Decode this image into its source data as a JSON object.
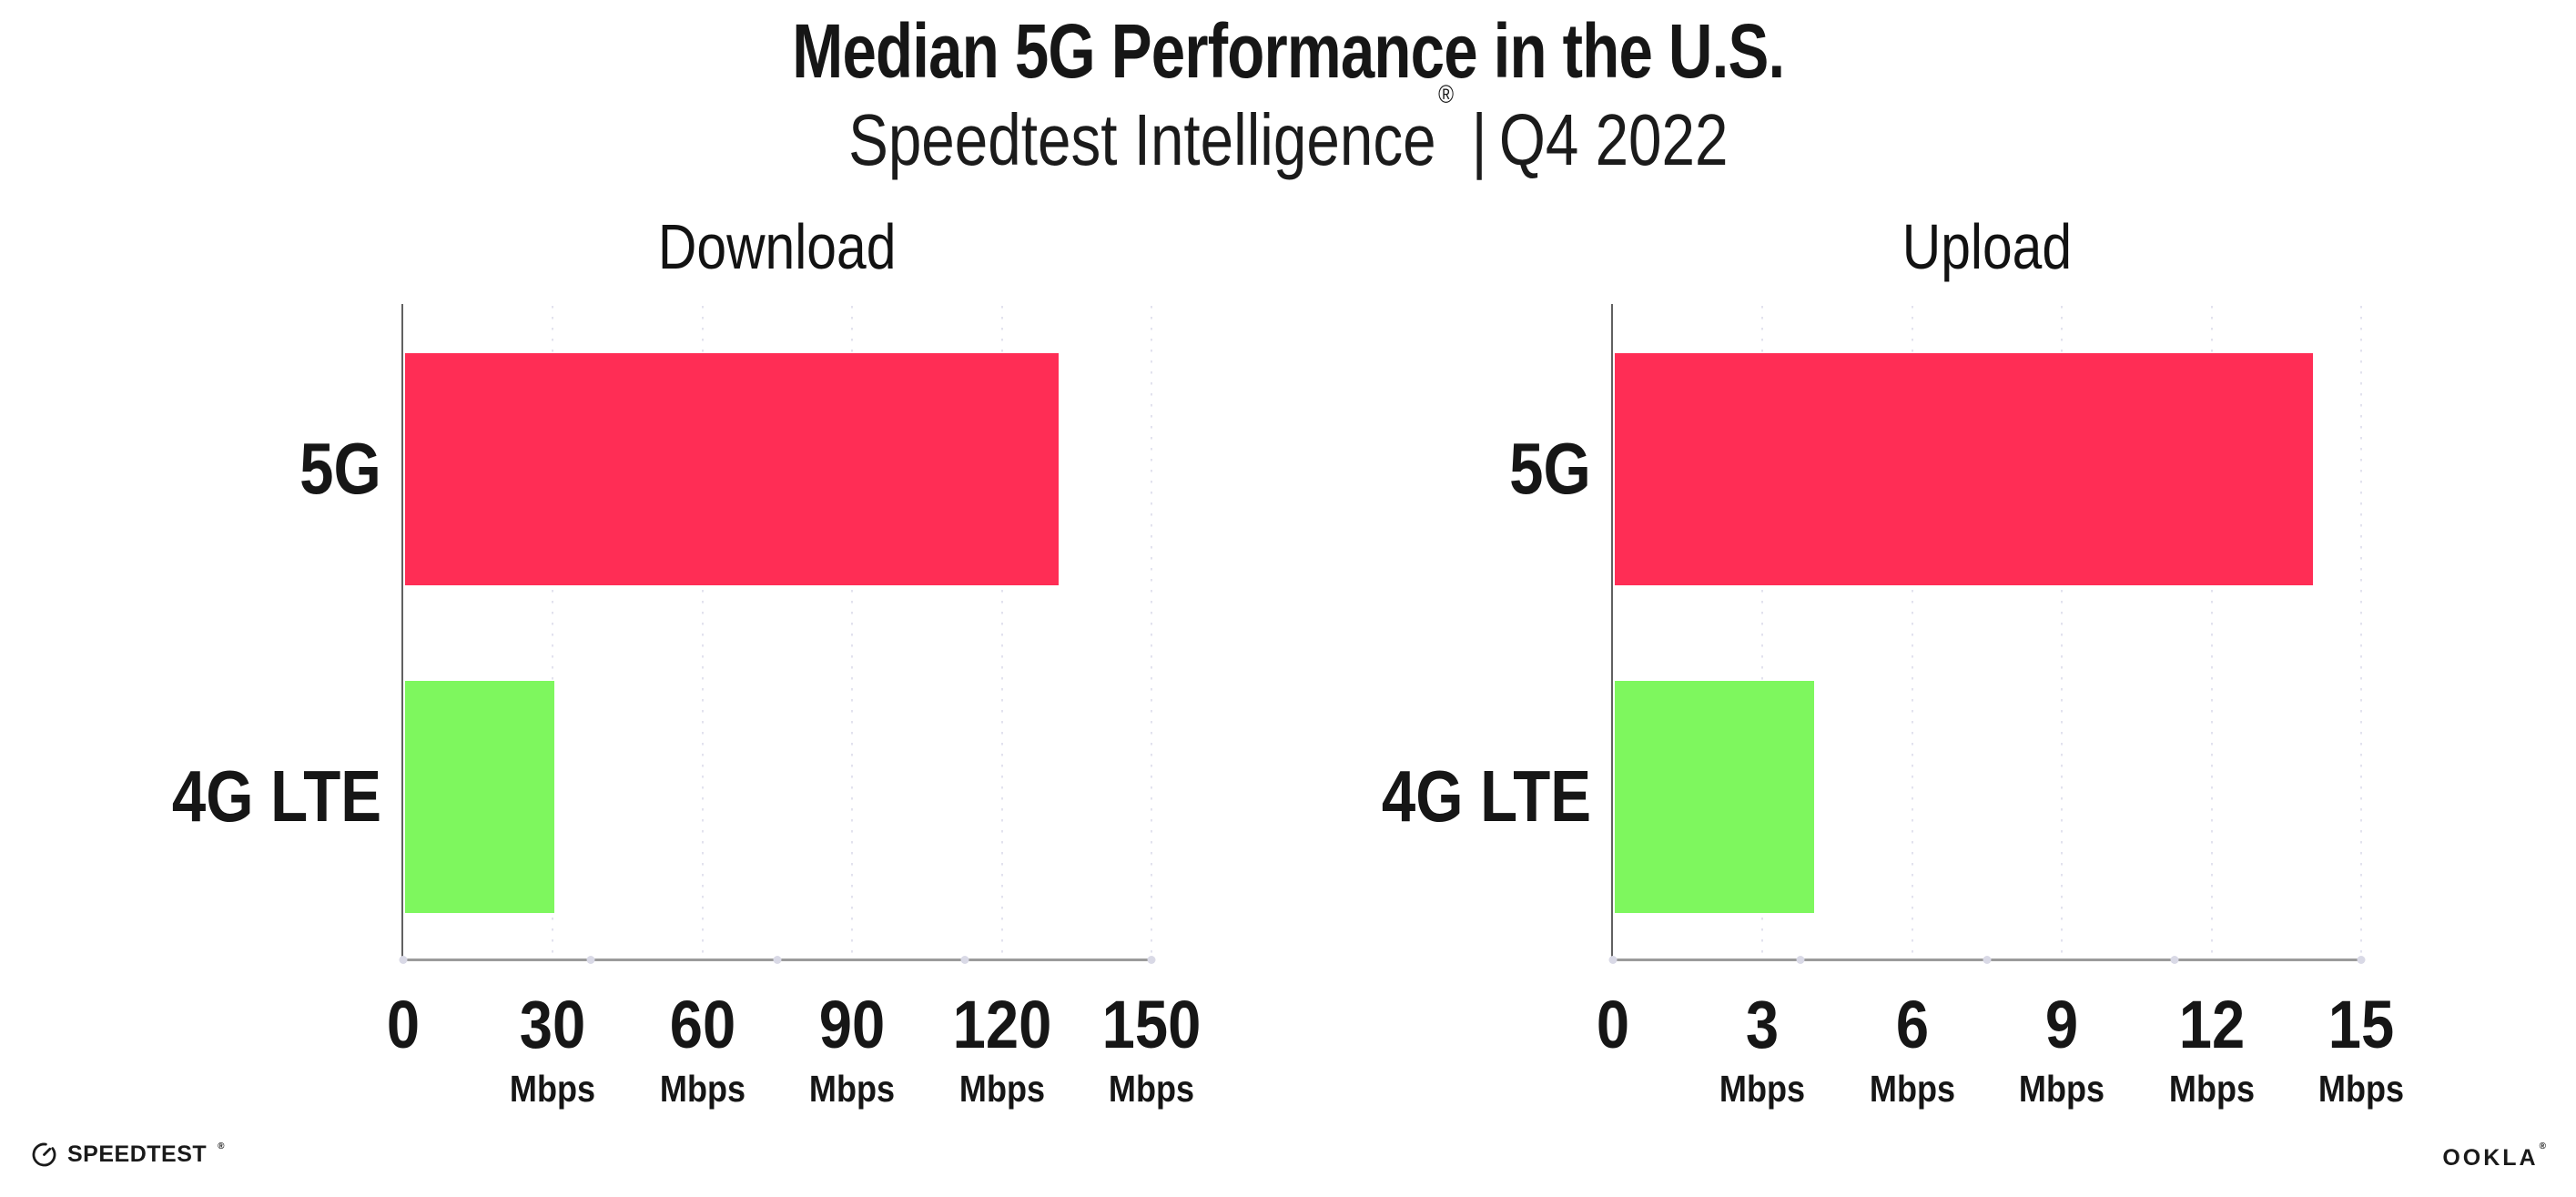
{
  "header": {
    "title": "Median 5G Performance in the U.S.",
    "subtitle_brand": "Speedtest Intelligence",
    "subtitle_reg": "®",
    "subtitle_sep": "|",
    "subtitle_period": "Q4 2022"
  },
  "chart_data": [
    {
      "type": "bar",
      "orientation": "horizontal",
      "title": "Download",
      "categories": [
        "5G",
        "4G LTE"
      ],
      "values": [
        131,
        30
      ],
      "unit": "Mbps",
      "xlim": [
        0,
        150
      ],
      "xticks": [
        0,
        30,
        60,
        90,
        120,
        150
      ],
      "bar_colors": [
        "#FF2D55",
        "#7EF75E"
      ],
      "grid": "dotted-vertical",
      "legend": "none"
    },
    {
      "type": "bar",
      "orientation": "horizontal",
      "title": "Upload",
      "categories": [
        "5G",
        "4G LTE"
      ],
      "values": [
        14,
        4
      ],
      "unit": "Mbps",
      "xlim": [
        0,
        15
      ],
      "xticks": [
        0,
        3,
        6,
        9,
        12,
        15
      ],
      "bar_colors": [
        "#FF2D55",
        "#7EF75E"
      ],
      "grid": "dotted-vertical",
      "legend": "none"
    }
  ],
  "footer": {
    "speedtest_label": "SPEEDTEST",
    "speedtest_mark": "®",
    "ookla_label": "OOKLA",
    "ookla_mark": "®"
  },
  "colors": {
    "accent_5g": "#FF2D55",
    "accent_4g": "#7EF75E",
    "gridline": "#E2E2EE",
    "axis_line": "#9B9B9B",
    "y_axis_line": "#616161",
    "axis_dot": "#D9D9E6",
    "text": "#161616",
    "background": "#FFFFFF"
  }
}
